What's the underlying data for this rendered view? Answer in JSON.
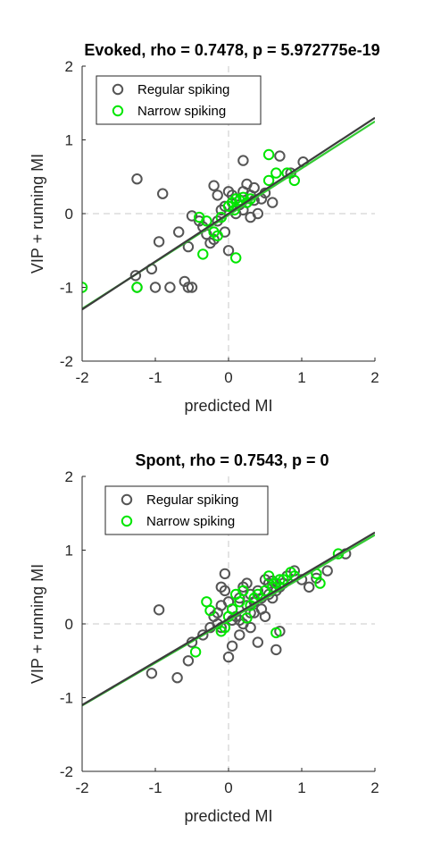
{
  "colors": {
    "regular": "#555555",
    "narrow": "#00e600",
    "regular_fit": "#3c3c3c",
    "narrow_fit": "#33cc33",
    "axis": "#262626",
    "zero_line": "#c8c8c8"
  },
  "chart_data": [
    {
      "type": "scatter",
      "title": "Evoked, rho = 0.7478, p = 5.972775e-19",
      "xlabel": "predicted MI",
      "ylabel": "VIP + running MI",
      "xlim": [
        -2,
        2
      ],
      "ylim": [
        -2,
        2
      ],
      "xticks": [
        "-2",
        "-1",
        "0",
        "1",
        "2"
      ],
      "yticks": [
        "-2",
        "-1",
        "0",
        "1",
        "2"
      ],
      "grid": false,
      "legend_position": "top-left",
      "series": [
        {
          "name": "Regular spiking",
          "color_key": "regular",
          "fit": {
            "slope": 0.65,
            "intercept": 0.0
          },
          "points": [
            [
              -1.25,
              0.47
            ],
            [
              -0.9,
              0.27
            ],
            [
              -1.27,
              -0.84
            ],
            [
              -1.25,
              -1.0
            ],
            [
              -1.05,
              -0.75
            ],
            [
              -1.0,
              -1.0
            ],
            [
              -0.8,
              -1.0
            ],
            [
              -0.6,
              -0.92
            ],
            [
              -0.55,
              -1.0
            ],
            [
              -0.5,
              -1.0
            ],
            [
              -0.95,
              -0.38
            ],
            [
              -0.68,
              -0.25
            ],
            [
              -0.55,
              -0.45
            ],
            [
              -0.5,
              -0.03
            ],
            [
              -0.4,
              -0.1
            ],
            [
              -0.35,
              -0.18
            ],
            [
              -0.3,
              -0.28
            ],
            [
              -0.25,
              -0.4
            ],
            [
              -0.2,
              -0.35
            ],
            [
              -0.15,
              -0.1
            ],
            [
              -0.1,
              0.05
            ],
            [
              -0.05,
              -0.25
            ],
            [
              0.0,
              -0.5
            ],
            [
              -0.2,
              0.38
            ],
            [
              -0.15,
              0.25
            ],
            [
              0.0,
              0.3
            ],
            [
              0.05,
              0.15
            ],
            [
              0.1,
              0.2
            ],
            [
              0.15,
              0.12
            ],
            [
              0.2,
              0.3
            ],
            [
              0.25,
              0.4
            ],
            [
              0.3,
              0.25
            ],
            [
              0.35,
              0.18
            ],
            [
              0.2,
              0.72
            ],
            [
              0.4,
              0.0
            ],
            [
              0.45,
              0.2
            ],
            [
              0.5,
              0.28
            ],
            [
              0.6,
              0.15
            ],
            [
              0.7,
              0.78
            ],
            [
              0.85,
              0.55
            ],
            [
              1.02,
              0.7
            ],
            [
              0.2,
              0.05
            ],
            [
              0.1,
              0.0
            ],
            [
              0.3,
              -0.05
            ],
            [
              -0.05,
              0.1
            ],
            [
              0.25,
              0.15
            ],
            [
              0.35,
              0.35
            ],
            [
              0.05,
              0.25
            ]
          ]
        },
        {
          "name": "Narrow spiking",
          "color_key": "narrow",
          "fit": {
            "slope": 0.635,
            "intercept": -0.02
          },
          "points": [
            [
              -2.0,
              -1.0
            ],
            [
              -1.25,
              -1.0
            ],
            [
              -0.4,
              -0.05
            ],
            [
              -0.3,
              -0.1
            ],
            [
              -0.2,
              -0.25
            ],
            [
              -0.15,
              -0.3
            ],
            [
              -0.35,
              -0.55
            ],
            [
              0.1,
              -0.6
            ],
            [
              0.0,
              0.1
            ],
            [
              0.05,
              0.15
            ],
            [
              0.1,
              0.2
            ],
            [
              0.15,
              0.18
            ],
            [
              0.2,
              0.22
            ],
            [
              0.25,
              0.15
            ],
            [
              0.3,
              0.2
            ],
            [
              0.55,
              0.8
            ],
            [
              0.65,
              0.55
            ],
            [
              0.55,
              0.45
            ],
            [
              0.8,
              0.55
            ],
            [
              0.9,
              0.45
            ],
            [
              -0.1,
              -0.05
            ],
            [
              0.08,
              0.05
            ]
          ]
        }
      ]
    },
    {
      "type": "scatter",
      "title": "Spont, rho = 0.7543, p = 0",
      "xlabel": "predicted MI",
      "ylabel": "VIP + running MI",
      "xlim": [
        -2,
        2
      ],
      "ylim": [
        -2,
        2
      ],
      "xticks": [
        "-2",
        "-1",
        "0",
        "1",
        "2"
      ],
      "yticks": [
        "-2",
        "-1",
        "0",
        "1",
        "2"
      ],
      "grid": false,
      "legend_position": "top-right",
      "series": [
        {
          "name": "Regular spiking",
          "color_key": "regular",
          "fit": {
            "slope": 0.585,
            "intercept": 0.07
          },
          "points": [
            [
              -0.95,
              0.19
            ],
            [
              -1.05,
              -0.67
            ],
            [
              -0.7,
              -0.73
            ],
            [
              -0.55,
              -0.5
            ],
            [
              -0.5,
              -0.25
            ],
            [
              -0.35,
              -0.15
            ],
            [
              -0.25,
              -0.05
            ],
            [
              -0.2,
              0.1
            ],
            [
              -0.15,
              0.15
            ],
            [
              -0.1,
              0.25
            ],
            [
              -0.05,
              0.45
            ],
            [
              -0.1,
              0.5
            ],
            [
              -0.05,
              0.68
            ],
            [
              0.0,
              0.3
            ],
            [
              0.05,
              0.2
            ],
            [
              0.1,
              0.1
            ],
            [
              0.15,
              0.35
            ],
            [
              0.2,
              0.5
            ],
            [
              0.25,
              0.25
            ],
            [
              0.3,
              0.15
            ],
            [
              0.35,
              0.3
            ],
            [
              0.4,
              0.45
            ],
            [
              0.45,
              0.2
            ],
            [
              0.5,
              0.6
            ],
            [
              0.55,
              0.55
            ],
            [
              0.6,
              0.35
            ],
            [
              0.65,
              0.45
            ],
            [
              0.7,
              0.5
            ],
            [
              0.8,
              0.65
            ],
            [
              0.9,
              0.72
            ],
            [
              1.0,
              0.6
            ],
            [
              1.1,
              0.5
            ],
            [
              1.2,
              0.62
            ],
            [
              1.35,
              0.72
            ],
            [
              1.6,
              0.95
            ],
            [
              0.0,
              -0.45
            ],
            [
              0.05,
              -0.3
            ],
            [
              0.15,
              -0.15
            ],
            [
              0.3,
              -0.05
            ],
            [
              0.4,
              -0.25
            ],
            [
              0.65,
              -0.35
            ],
            [
              -0.1,
              -0.05
            ],
            [
              0.2,
              0.0
            ],
            [
              0.5,
              0.1
            ],
            [
              0.7,
              -0.1
            ],
            [
              0.25,
              0.55
            ],
            [
              0.35,
              0.15
            ],
            [
              0.45,
              0.35
            ],
            [
              0.6,
              0.58
            ],
            [
              0.75,
              0.55
            ],
            [
              0.15,
              0.05
            ],
            [
              0.05,
              0.05
            ],
            [
              -0.15,
              0.0
            ],
            [
              0.3,
              0.4
            ],
            [
              0.55,
              0.4
            ]
          ]
        },
        {
          "name": "Narrow spiking",
          "color_key": "narrow",
          "fit": {
            "slope": 0.578,
            "intercept": 0.05
          },
          "points": [
            [
              -0.45,
              -0.38
            ],
            [
              -0.3,
              0.3
            ],
            [
              -0.25,
              0.18
            ],
            [
              -0.1,
              -0.1
            ],
            [
              0.0,
              0.1
            ],
            [
              0.05,
              0.2
            ],
            [
              0.1,
              0.4
            ],
            [
              0.15,
              0.3
            ],
            [
              0.2,
              0.45
            ],
            [
              0.3,
              0.25
            ],
            [
              0.4,
              0.4
            ],
            [
              0.5,
              0.45
            ],
            [
              0.55,
              0.65
            ],
            [
              0.6,
              0.5
            ],
            [
              0.65,
              0.55
            ],
            [
              0.7,
              0.6
            ],
            [
              0.75,
              0.6
            ],
            [
              0.85,
              0.7
            ],
            [
              0.9,
              0.65
            ],
            [
              1.2,
              0.68
            ],
            [
              1.25,
              0.55
            ],
            [
              1.5,
              0.95
            ],
            [
              0.65,
              -0.12
            ],
            [
              0.25,
              0.08
            ],
            [
              -0.05,
              -0.05
            ],
            [
              0.35,
              0.35
            ]
          ]
        }
      ]
    }
  ]
}
